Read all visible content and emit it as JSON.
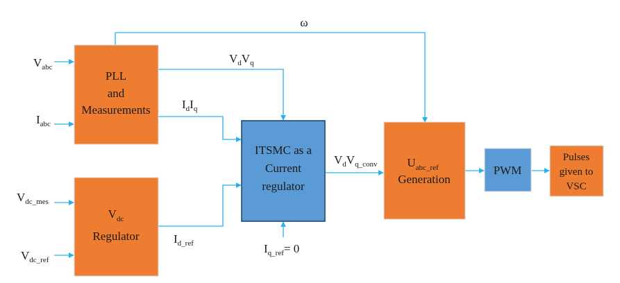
{
  "colors": {
    "orange": "#ee7d31",
    "blue": "#5b9bd5",
    "block_border": "#d9d9d9",
    "itsmc_border": "#1f3f66",
    "wire": "#2bb1e8"
  },
  "blocks": {
    "pll": {
      "line1": "PLL",
      "line2": "and",
      "line3": "Measurements"
    },
    "vdc_reg": {
      "sym_main": "V",
      "sym_sub": "dc",
      "line2": "Regulator"
    },
    "itsmc": {
      "line1": "ITSMC as a",
      "line2": "Current",
      "line3": "regulator"
    },
    "uabc": {
      "sym_main": "U",
      "sym_sub": "abc_ref",
      "line2": "Generation"
    },
    "pwm": {
      "label": "PWM"
    },
    "pulses": {
      "line1": "Pulses",
      "line2": "given to",
      "line3": "VSC"
    }
  },
  "signals": {
    "omega": "ω",
    "vabc": {
      "main": "V",
      "sub": "abc"
    },
    "iabc": {
      "main": "I",
      "sub": "abc"
    },
    "vdc_mes": {
      "main": "V",
      "sub": "dc_mes"
    },
    "vdc_ref": {
      "main": "V",
      "sub": "dc_ref"
    },
    "vdvq": {
      "m1": "V",
      "s1": "d",
      "m2": "V",
      "s2": "q"
    },
    "idiq": {
      "m1": "I",
      "s1": "d",
      "m2": "I",
      "s2": "q"
    },
    "id_ref": {
      "main": "I",
      "sub": "d_ref"
    },
    "iq_ref": {
      "main": "I",
      "sub": "q_ref",
      "tail": "= 0"
    },
    "vdvq_conv": {
      "m1": "V",
      "s1": "d",
      "m2": "V",
      "s2": "q_conv"
    }
  }
}
